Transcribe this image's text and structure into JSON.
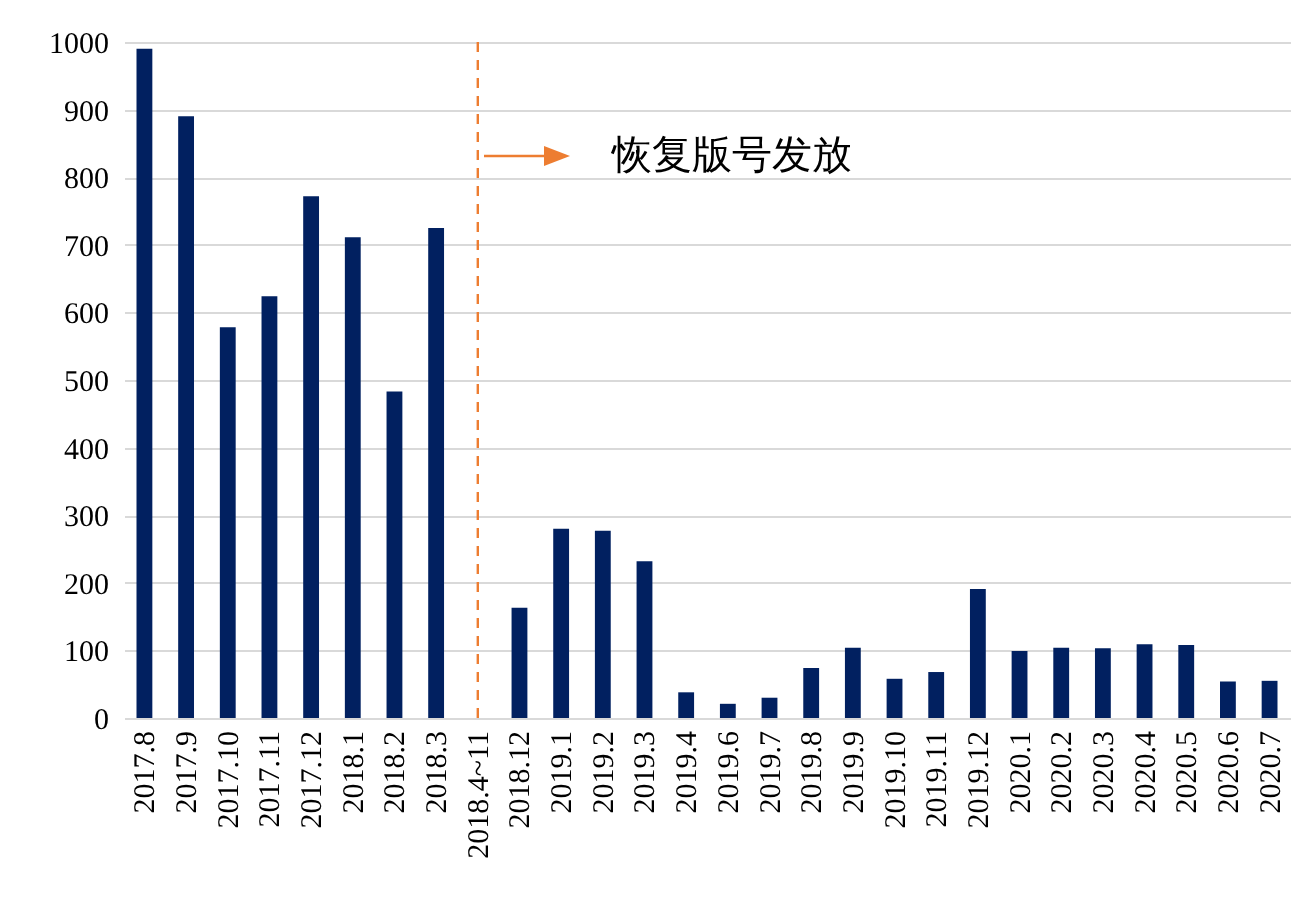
{
  "chart_data": {
    "type": "bar",
    "categories": [
      "2017.8",
      "2017.9",
      "2017.10",
      "2017.11",
      "2017.12",
      "2018.1",
      "2018.2",
      "2018.3",
      "2018.4~11",
      "2018.12",
      "2019.1",
      "2019.2",
      "2019.3",
      "2019.4",
      "2019.6",
      "2019.7",
      "2019.8",
      "2019.9",
      "2019.10",
      "2019.11",
      "2019.12",
      "2020.1",
      "2020.2",
      "2020.3",
      "2020.4",
      "2020.5",
      "2020.6",
      "2020.7"
    ],
    "values": [
      990,
      890,
      578,
      624,
      772,
      711,
      483,
      725,
      null,
      163,
      280,
      277,
      232,
      38,
      21,
      30,
      74,
      104,
      58,
      68,
      191,
      99,
      104,
      103,
      109,
      108,
      54,
      55
    ],
    "color": "#012060",
    "ylim": [
      0,
      1000
    ],
    "yticks": [
      0,
      100,
      200,
      300,
      400,
      500,
      600,
      700,
      800,
      900,
      1000
    ],
    "grid": "y",
    "ref_lines": [
      {
        "axis": "x",
        "value": "2018.4~11",
        "color": "#ed7d31",
        "line_style": "dashed"
      }
    ],
    "annotations": [
      "恢复版号发放"
    ]
  }
}
